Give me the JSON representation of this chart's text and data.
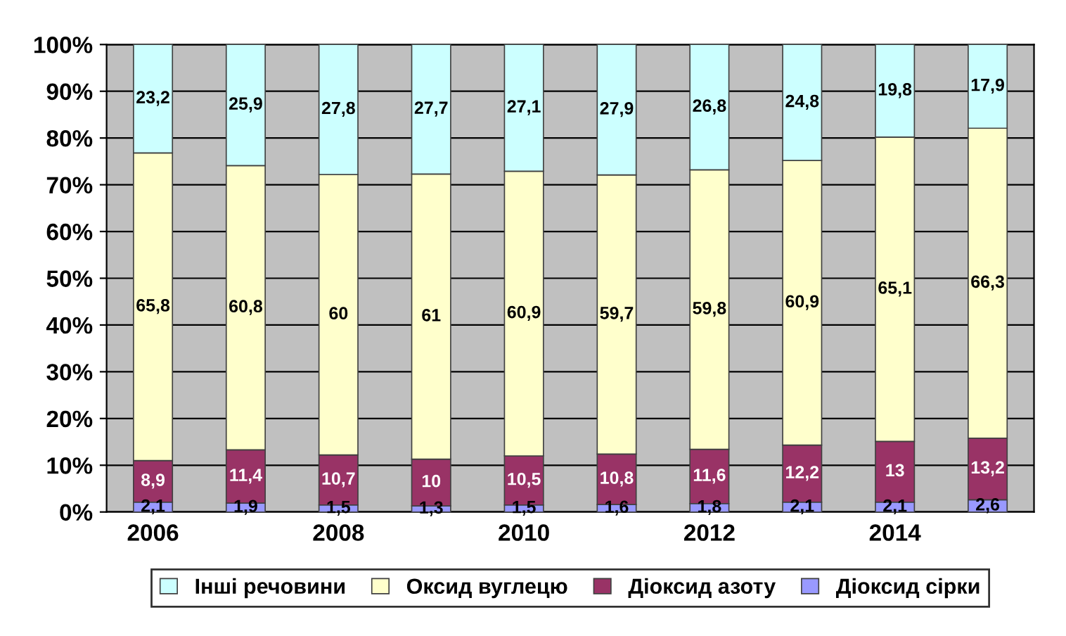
{
  "chart_data": {
    "type": "bar",
    "stacked": true,
    "categories": [
      "2006",
      null,
      "2008",
      null,
      "2010",
      null,
      "2012",
      null,
      "2014",
      null
    ],
    "series": [
      {
        "name": "Діоксид сірки",
        "color": "#9999ff",
        "values": [
          2.1,
          1.9,
          1.5,
          1.3,
          1.5,
          1.6,
          1.8,
          2.1,
          2.1,
          2.6
        ],
        "value_labels": [
          "2,1",
          "1,9",
          "1,5",
          "1,3",
          "1,5",
          "1,6",
          "1,8",
          "2,1",
          "2,1",
          "2,6"
        ]
      },
      {
        "name": "Діоксид азоту",
        "color": "#993366",
        "values": [
          8.9,
          11.4,
          10.7,
          10,
          10.5,
          10.8,
          11.6,
          12.2,
          13,
          13.2
        ],
        "value_labels": [
          "8,9",
          "11,4",
          "10,7",
          "10",
          "10,5",
          "10,8",
          "11,6",
          "12,2",
          "13",
          "13,2"
        ]
      },
      {
        "name": "Оксид вуглецю",
        "color": "#ffffcc",
        "values": [
          65.8,
          60.8,
          60,
          61,
          60.9,
          59.7,
          59.8,
          60.9,
          65.1,
          66.3
        ],
        "value_labels": [
          "65,8",
          "60,8",
          "60",
          "61",
          "60,9",
          "59,7",
          "59,8",
          "60,9",
          "65,1",
          "66,3"
        ]
      },
      {
        "name": "Інші речовини",
        "color": "#ccffff",
        "values": [
          23.2,
          25.9,
          27.8,
          27.7,
          27.1,
          27.9,
          26.8,
          24.8,
          19.8,
          17.9
        ],
        "value_labels": [
          "23,2",
          "25,9",
          "27,8",
          "27,7",
          "27,1",
          "27,9",
          "26,8",
          "24,8",
          "19,8",
          "17,9"
        ]
      }
    ],
    "ylim": [
      0,
      100
    ],
    "yticks": [
      {
        "value": 0,
        "label": "0%"
      },
      {
        "value": 10,
        "label": "10%"
      },
      {
        "value": 20,
        "label": "20%"
      },
      {
        "value": 30,
        "label": "30%"
      },
      {
        "value": 40,
        "label": "40%"
      },
      {
        "value": 50,
        "label": "50%"
      },
      {
        "value": 60,
        "label": "60%"
      },
      {
        "value": 70,
        "label": "70%"
      },
      {
        "value": 80,
        "label": "80%"
      },
      {
        "value": 90,
        "label": "90%"
      },
      {
        "value": 100,
        "label": "100%"
      }
    ],
    "grid": "y",
    "legend": "bottom"
  }
}
